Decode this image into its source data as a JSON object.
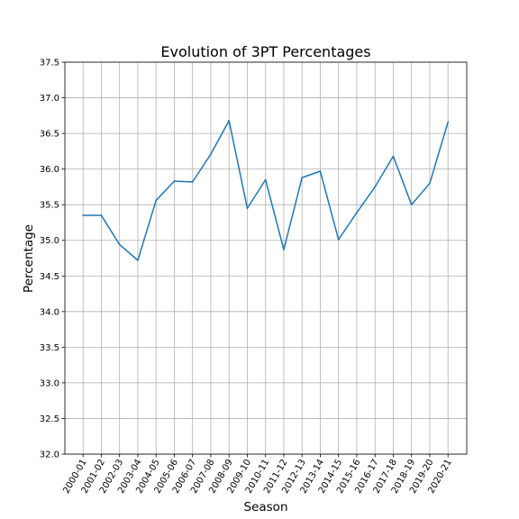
{
  "chart_data": {
    "type": "line",
    "title": "Evolution of 3PT Percentages",
    "xlabel": "Season",
    "ylabel": "Percentage",
    "categories": [
      "2000-01",
      "2001-02",
      "2002-03",
      "2003-04",
      "2004-05",
      "2005-06",
      "2006-07",
      "2007-08",
      "2008-09",
      "2009-10",
      "2010-11",
      "2011-12",
      "2012-13",
      "2013-14",
      "2014-15",
      "2015-16",
      "2016-17",
      "2017-18",
      "2018-19",
      "2019-20",
      "2020-21"
    ],
    "series": [
      {
        "values": [
          35.35,
          35.35,
          34.94,
          34.72,
          35.56,
          35.83,
          35.82,
          36.21,
          36.68,
          35.45,
          35.85,
          34.87,
          35.88,
          35.97,
          35.01,
          35.39,
          35.75,
          36.18,
          35.5,
          35.8,
          36.66
        ],
        "color": "#1f77b4"
      }
    ],
    "ylim": [
      32.0,
      37.5
    ],
    "yticks": [
      32.0,
      32.5,
      33.0,
      33.5,
      34.0,
      34.5,
      35.0,
      35.5,
      36.0,
      36.5,
      37.0,
      37.5
    ],
    "ytick_labels": [
      "32.0",
      "32.5",
      "33.0",
      "33.5",
      "34.0",
      "34.5",
      "35.0",
      "35.5",
      "36.0",
      "36.5",
      "37.0",
      "37.5"
    ],
    "grid": true,
    "xtick_rotation_deg": 60
  }
}
